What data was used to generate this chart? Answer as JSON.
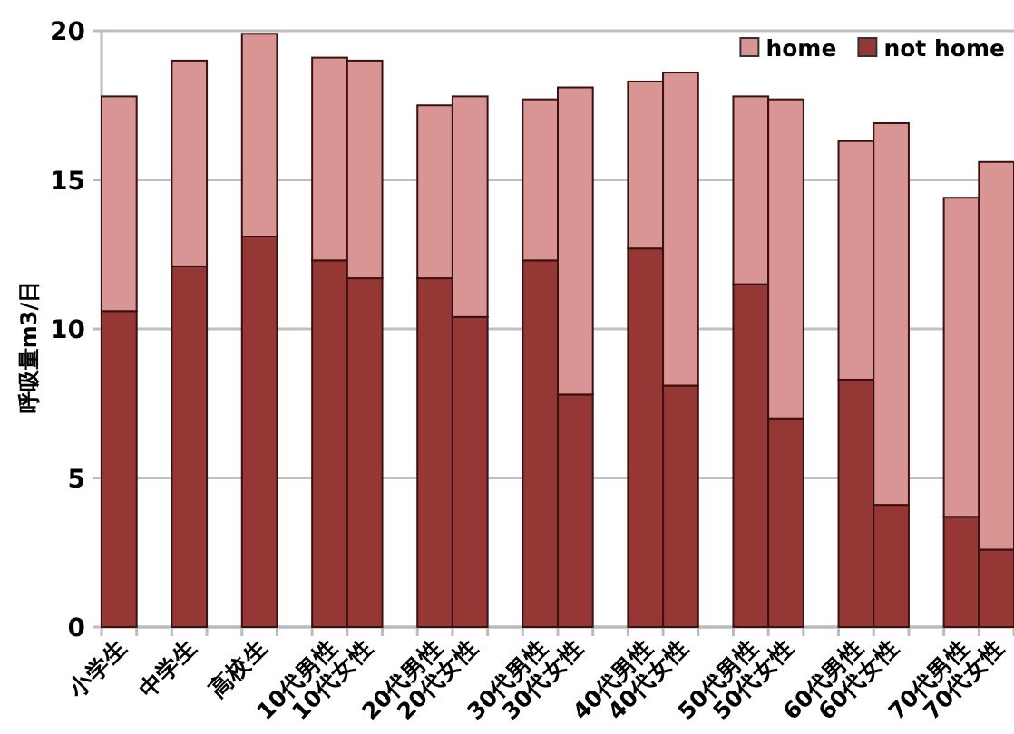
{
  "chart_data": {
    "type": "bar",
    "stacked": true,
    "ylabel": "呼吸量m3/日",
    "categories": [
      "小学生",
      null,
      "中学生",
      null,
      "高校生",
      null,
      "10代男性",
      "10代女性",
      null,
      "20代男性",
      "20代女性",
      null,
      "30代男性",
      "30代女性",
      null,
      "40代男性",
      "40代女性",
      null,
      "50代男性",
      "50代女性",
      null,
      "60代男性",
      "60代女性",
      null,
      "70代男性",
      "70代女性"
    ],
    "series": [
      {
        "name": "not home",
        "color": "#953735",
        "values": [
          10.6,
          null,
          12.1,
          null,
          13.1,
          null,
          12.3,
          11.7,
          null,
          11.7,
          10.4,
          null,
          12.3,
          7.8,
          null,
          12.7,
          8.1,
          null,
          11.5,
          7.0,
          null,
          8.3,
          4.1,
          null,
          3.7,
          2.6
        ]
      },
      {
        "name": "home",
        "color": "#d99594",
        "values": [
          7.2,
          null,
          6.9,
          null,
          6.8,
          null,
          6.8,
          7.3,
          null,
          5.8,
          7.4,
          null,
          5.4,
          10.3,
          null,
          5.6,
          10.5,
          null,
          6.3,
          10.7,
          null,
          8.0,
          12.8,
          null,
          10.7,
          13.0
        ]
      }
    ],
    "ylim": [
      0,
      20
    ],
    "yticks": [
      0,
      5,
      10,
      15,
      20
    ],
    "grid": "y",
    "legend": "top right"
  }
}
